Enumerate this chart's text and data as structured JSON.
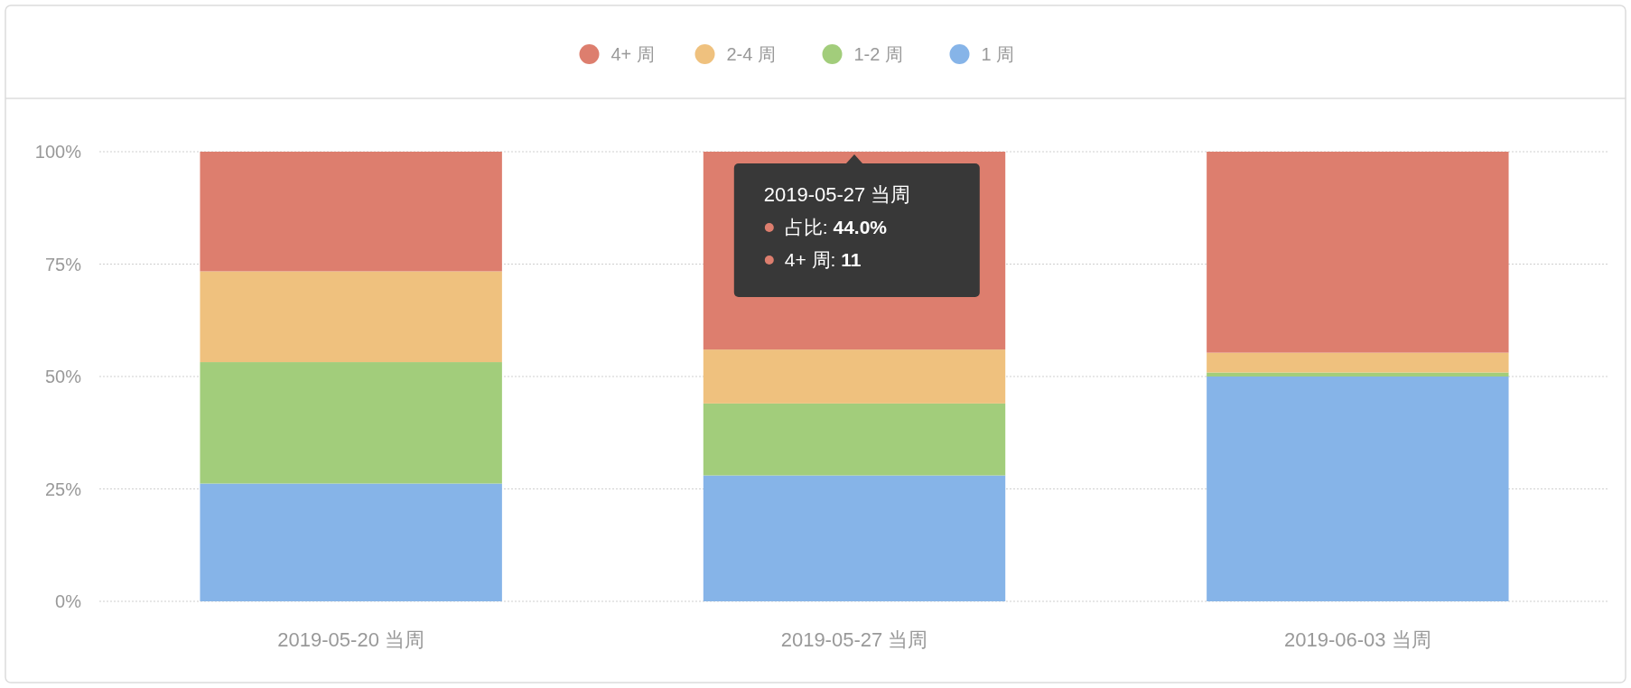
{
  "chart_data": {
    "type": "bar",
    "stacked": true,
    "categories": [
      "2019-05-20 当周",
      "2019-05-27 当周",
      "2019-06-03 当周"
    ],
    "series": [
      {
        "name": "1 周",
        "color": "#86b4e8",
        "values": [
          26.2,
          28.0,
          50.0
        ]
      },
      {
        "name": "1-2 周",
        "color": "#a2cd7b",
        "values": [
          27.0,
          16.0,
          0.9
        ]
      },
      {
        "name": "2-4 周",
        "color": "#efc17e",
        "values": [
          20.2,
          12.0,
          4.4
        ]
      },
      {
        "name": "4+ 周",
        "color": "#dd7e6e",
        "values": [
          26.6,
          44.0,
          44.7
        ]
      }
    ],
    "ylim": [
      0,
      100
    ],
    "yticks": [
      {
        "value": 0,
        "label": "0%"
      },
      {
        "value": 25,
        "label": "25%"
      },
      {
        "value": 50,
        "label": "50%"
      },
      {
        "value": 75,
        "label": "75%"
      },
      {
        "value": 100,
        "label": "100%"
      }
    ],
    "grid": "y",
    "legend": "top",
    "annotations": [
      {
        "text": "2019-05-27 当周",
        "x": "2019-05-27 当周",
        "y": 100
      },
      "占比: 44.0%",
      "4+ 周: 11"
    ]
  }
}
